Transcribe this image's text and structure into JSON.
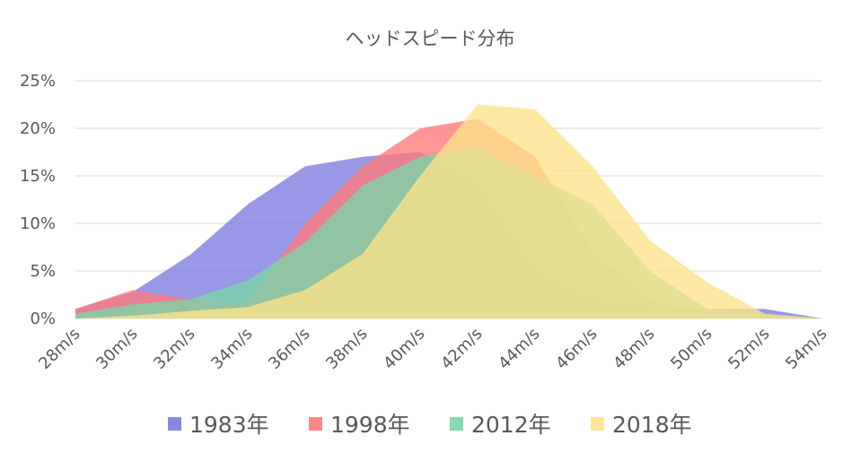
{
  "chart_data": {
    "type": "area",
    "title": "ヘッドスピード分布",
    "xlabel": "",
    "ylabel": "",
    "categories": [
      "28m/s",
      "30m/s",
      "32m/s",
      "34m/s",
      "36m/s",
      "38m/s",
      "40m/s",
      "42m/s",
      "44m/s",
      "46m/s",
      "48m/s",
      "50m/s",
      "52m/s",
      "54m/s"
    ],
    "y_ticks": [
      "0%",
      "5%",
      "10%",
      "15%",
      "20%",
      "25%"
    ],
    "ylim": [
      0,
      25
    ],
    "grid": true,
    "legend_position": "bottom",
    "series": [
      {
        "name": "1983年",
        "color": "#7b7bdf",
        "values": [
          1.0,
          2.8,
          6.7,
          12.0,
          16.0,
          17.0,
          17.5,
          14.0,
          5.0,
          2.0,
          1.0,
          1.0,
          1.0,
          0.0
        ]
      },
      {
        "name": "1998年",
        "color": "#ff7a7a",
        "values": [
          1.0,
          3.0,
          2.0,
          1.5,
          10.0,
          16.0,
          20.0,
          21.0,
          17.0,
          7.0,
          2.0,
          0.5,
          0.5,
          0.0
        ]
      },
      {
        "name": "2012年",
        "color": "#7ad6a8",
        "values": [
          0.5,
          1.5,
          2.0,
          4.0,
          8.0,
          14.0,
          17.0,
          18.0,
          15.0,
          12.0,
          5.0,
          1.0,
          0.5,
          0.0
        ]
      },
      {
        "name": "2018年",
        "color": "#fde38a",
        "values": [
          0.0,
          0.3,
          0.8,
          1.2,
          3.0,
          6.8,
          15.0,
          22.5,
          22.0,
          16.0,
          8.2,
          3.8,
          0.5,
          0.0
        ]
      }
    ]
  }
}
